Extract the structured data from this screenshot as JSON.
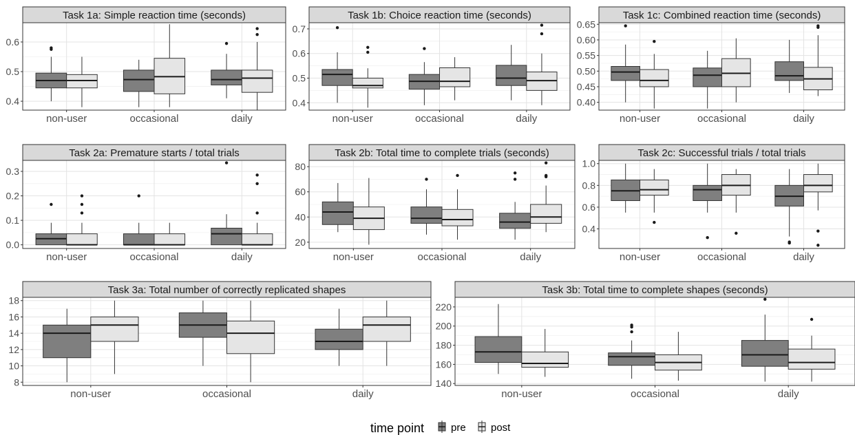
{
  "legend": {
    "title": "time point",
    "entries": [
      {
        "label": "pre",
        "color": "#7f7f7f"
      },
      {
        "label": "post",
        "color": "#e5e5e5"
      }
    ]
  },
  "chart_data": [
    {
      "type": "box",
      "title": "Task 1a: Simple reaction time (seconds)",
      "categories": [
        "non-user",
        "occasional",
        "daily"
      ],
      "ylim": [
        0.37,
        0.665
      ],
      "yticks": [
        0.4,
        0.5,
        0.6
      ],
      "series": [
        {
          "name": "pre",
          "boxes": [
            {
              "min": 0.4,
              "q1": 0.445,
              "median": 0.47,
              "q3": 0.495,
              "max": 0.55,
              "outliers": [
                0.575,
                0.58
              ]
            },
            {
              "min": 0.38,
              "q1": 0.433,
              "median": 0.473,
              "q3": 0.505,
              "max": 0.54,
              "outliers": []
            },
            {
              "min": 0.41,
              "q1": 0.455,
              "median": 0.473,
              "q3": 0.505,
              "max": 0.56,
              "outliers": [
                0.595
              ]
            }
          ]
        },
        {
          "name": "post",
          "boxes": [
            {
              "min": 0.38,
              "q1": 0.445,
              "median": 0.47,
              "q3": 0.49,
              "max": 0.55,
              "outliers": []
            },
            {
              "min": 0.38,
              "q1": 0.425,
              "median": 0.483,
              "q3": 0.545,
              "max": 0.66,
              "outliers": []
            },
            {
              "min": 0.37,
              "q1": 0.43,
              "median": 0.478,
              "q3": 0.505,
              "max": 0.6,
              "outliers": [
                0.625,
                0.645
              ]
            }
          ]
        }
      ]
    },
    {
      "type": "box",
      "title": "Task 1b: Choice reaction time (seconds)",
      "categories": [
        "non-user",
        "occasional",
        "daily"
      ],
      "ylim": [
        0.37,
        0.725
      ],
      "yticks": [
        0.4,
        0.5,
        0.6,
        0.7
      ],
      "series": [
        {
          "name": "pre",
          "boxes": [
            {
              "min": 0.4,
              "q1": 0.47,
              "median": 0.515,
              "q3": 0.535,
              "max": 0.605,
              "outliers": [
                0.705
              ]
            },
            {
              "min": 0.39,
              "q1": 0.455,
              "median": 0.487,
              "q3": 0.515,
              "max": 0.565,
              "outliers": [
                0.62
              ]
            },
            {
              "min": 0.41,
              "q1": 0.47,
              "median": 0.5,
              "q3": 0.552,
              "max": 0.635,
              "outliers": []
            }
          ]
        },
        {
          "name": "post",
          "boxes": [
            {
              "min": 0.38,
              "q1": 0.46,
              "median": 0.47,
              "q3": 0.5,
              "max": 0.54,
              "outliers": [
                0.605,
                0.625
              ]
            },
            {
              "min": 0.41,
              "q1": 0.465,
              "median": 0.487,
              "q3": 0.542,
              "max": 0.585,
              "outliers": []
            },
            {
              "min": 0.39,
              "q1": 0.45,
              "median": 0.49,
              "q3": 0.525,
              "max": 0.6,
              "outliers": [
                0.68,
                0.715
              ]
            }
          ]
        }
      ]
    },
    {
      "type": "box",
      "title": "Task 1c: Combined reaction time (seconds)",
      "categories": [
        "non-user",
        "occasional",
        "daily"
      ],
      "ylim": [
        0.375,
        0.655
      ],
      "yticks": [
        0.4,
        0.45,
        0.5,
        0.55,
        0.6,
        0.65
      ],
      "yticklabels": [
        "0.40",
        "0.45",
        "0.50",
        "0.55",
        "0.60",
        "0.65"
      ],
      "series": [
        {
          "name": "pre",
          "boxes": [
            {
              "min": 0.4,
              "q1": 0.47,
              "median": 0.497,
              "q3": 0.515,
              "max": 0.585,
              "outliers": [
                0.645
              ]
            },
            {
              "min": 0.38,
              "q1": 0.45,
              "median": 0.487,
              "q3": 0.51,
              "max": 0.565,
              "outliers": []
            },
            {
              "min": 0.43,
              "q1": 0.47,
              "median": 0.485,
              "q3": 0.53,
              "max": 0.6,
              "outliers": []
            }
          ]
        },
        {
          "name": "post",
          "boxes": [
            {
              "min": 0.38,
              "q1": 0.45,
              "median": 0.47,
              "q3": 0.505,
              "max": 0.555,
              "outliers": [
                0.595
              ]
            },
            {
              "min": 0.4,
              "q1": 0.45,
              "median": 0.493,
              "q3": 0.54,
              "max": 0.605,
              "outliers": []
            },
            {
              "min": 0.42,
              "q1": 0.44,
              "median": 0.475,
              "q3": 0.512,
              "max": 0.615,
              "outliers": [
                0.64,
                0.645
              ]
            }
          ]
        }
      ]
    },
    {
      "type": "box",
      "title": "Task 2a: Premature starts / total trials",
      "categories": [
        "non-user",
        "occasional",
        "daily"
      ],
      "ylim": [
        -0.015,
        0.345
      ],
      "yticks": [
        0.0,
        0.1,
        0.2,
        0.3
      ],
      "yticklabels": [
        "0.0",
        "0.1",
        "0.2",
        "0.3"
      ],
      "series": [
        {
          "name": "pre",
          "boxes": [
            {
              "min": 0.0,
              "q1": 0.0,
              "median": 0.025,
              "q3": 0.045,
              "max": 0.09,
              "outliers": [
                0.165
              ]
            },
            {
              "min": 0.0,
              "q1": 0.0,
              "median": 0.0,
              "q3": 0.045,
              "max": 0.09,
              "outliers": [
                0.2
              ]
            },
            {
              "min": 0.0,
              "q1": 0.0,
              "median": 0.045,
              "q3": 0.068,
              "max": 0.125,
              "outliers": [
                0.335
              ]
            }
          ]
        },
        {
          "name": "post",
          "boxes": [
            {
              "min": 0.0,
              "q1": 0.0,
              "median": 0.0,
              "q3": 0.045,
              "max": 0.09,
              "outliers": [
                0.13,
                0.165,
                0.2
              ]
            },
            {
              "min": 0.0,
              "q1": 0.0,
              "median": 0.0,
              "q3": 0.045,
              "max": 0.09,
              "outliers": []
            },
            {
              "min": 0.0,
              "q1": 0.0,
              "median": 0.0,
              "q3": 0.045,
              "max": 0.09,
              "outliers": [
                0.13,
                0.25,
                0.285
              ]
            }
          ]
        }
      ]
    },
    {
      "type": "box",
      "title": "Task 2b: Total time to complete trials (seconds)",
      "categories": [
        "non-user",
        "occasional",
        "daily"
      ],
      "ylim": [
        15,
        85
      ],
      "yticks": [
        20,
        40,
        60,
        80
      ],
      "series": [
        {
          "name": "pre",
          "boxes": [
            {
              "min": 28,
              "q1": 34,
              "median": 44,
              "q3": 52,
              "max": 67,
              "outliers": []
            },
            {
              "min": 26,
              "q1": 35,
              "median": 39,
              "q3": 48,
              "max": 62,
              "outliers": [
                70
              ]
            },
            {
              "min": 22,
              "q1": 31,
              "median": 36,
              "q3": 43,
              "max": 52,
              "outliers": [
                70,
                75
              ]
            }
          ]
        },
        {
          "name": "post",
          "boxes": [
            {
              "min": 18,
              "q1": 30,
              "median": 39,
              "q3": 48,
              "max": 71,
              "outliers": []
            },
            {
              "min": 22,
              "q1": 33,
              "median": 38,
              "q3": 46,
              "max": 62,
              "outliers": [
                73
              ]
            },
            {
              "min": 28,
              "q1": 35,
              "median": 40,
              "q3": 50,
              "max": 65,
              "outliers": [
                72,
                73,
                83
              ]
            }
          ]
        }
      ]
    },
    {
      "type": "box",
      "title": "Task 2c: Successful trials / total trials",
      "categories": [
        "non-user",
        "occasional",
        "daily"
      ],
      "ylim": [
        0.22,
        1.03
      ],
      "yticks": [
        0.4,
        0.6,
        0.8,
        1.0
      ],
      "yticklabels": [
        "0.4",
        "0.6",
        "0.8",
        "1.0"
      ],
      "series": [
        {
          "name": "pre",
          "boxes": [
            {
              "min": 0.55,
              "q1": 0.66,
              "median": 0.75,
              "q3": 0.85,
              "max": 1.0,
              "outliers": []
            },
            {
              "min": 0.55,
              "q1": 0.66,
              "median": 0.76,
              "q3": 0.8,
              "max": 1.0,
              "outliers": [
                0.32
              ]
            },
            {
              "min": 0.33,
              "q1": 0.61,
              "median": 0.7,
              "q3": 0.8,
              "max": 0.95,
              "outliers": [
                0.27,
                0.28
              ]
            }
          ]
        },
        {
          "name": "post",
          "boxes": [
            {
              "min": 0.55,
              "q1": 0.71,
              "median": 0.76,
              "q3": 0.85,
              "max": 0.95,
              "outliers": [
                0.46
              ]
            },
            {
              "min": 0.55,
              "q1": 0.71,
              "median": 0.8,
              "q3": 0.9,
              "max": 0.95,
              "outliers": [
                0.36
              ]
            },
            {
              "min": 0.57,
              "q1": 0.74,
              "median": 0.8,
              "q3": 0.9,
              "max": 1.0,
              "outliers": [
                0.25,
                0.38
              ]
            }
          ]
        }
      ]
    },
    {
      "type": "box",
      "title": "Task 3a: Total number of correctly replicated shapes",
      "categories": [
        "non-user",
        "occasional",
        "daily"
      ],
      "ylim": [
        7.6,
        18.4
      ],
      "yticks": [
        8,
        10,
        12,
        14,
        16,
        18
      ],
      "series": [
        {
          "name": "pre",
          "boxes": [
            {
              "min": 8,
              "q1": 11,
              "median": 14,
              "q3": 15,
              "max": 17,
              "outliers": []
            },
            {
              "min": 10,
              "q1": 13.5,
              "median": 15,
              "q3": 16.5,
              "max": 18,
              "outliers": []
            },
            {
              "min": 10,
              "q1": 12,
              "median": 13,
              "q3": 14.5,
              "max": 17,
              "outliers": []
            }
          ]
        },
        {
          "name": "post",
          "boxes": [
            {
              "min": 9,
              "q1": 13,
              "median": 15,
              "q3": 16,
              "max": 18,
              "outliers": []
            },
            {
              "min": 8,
              "q1": 11.5,
              "median": 14,
              "q3": 15.5,
              "max": 18,
              "outliers": []
            },
            {
              "min": 10,
              "q1": 13,
              "median": 15,
              "q3": 16,
              "max": 18,
              "outliers": []
            }
          ]
        }
      ]
    },
    {
      "type": "box",
      "title": "Task 3b: Total time to complete shapes (seconds)",
      "categories": [
        "non-user",
        "occasional",
        "daily"
      ],
      "ylim": [
        138,
        230
      ],
      "yticks": [
        140,
        160,
        180,
        200,
        220
      ],
      "series": [
        {
          "name": "pre",
          "boxes": [
            {
              "min": 150,
              "q1": 162,
              "median": 173,
              "q3": 189,
              "max": 223,
              "outliers": []
            },
            {
              "min": 145,
              "q1": 159,
              "median": 168,
              "q3": 172,
              "max": 185,
              "outliers": [
                194,
                199,
                201
              ]
            },
            {
              "min": 142,
              "q1": 158,
              "median": 170,
              "q3": 185,
              "max": 212,
              "outliers": [
                228
              ]
            }
          ]
        },
        {
          "name": "post",
          "boxes": [
            {
              "min": 147,
              "q1": 157,
              "median": 161,
              "q3": 173,
              "max": 197,
              "outliers": []
            },
            {
              "min": 143,
              "q1": 154,
              "median": 162,
              "q3": 170,
              "max": 194,
              "outliers": []
            },
            {
              "min": 142,
              "q1": 155,
              "median": 162,
              "q3": 176,
              "max": 190,
              "outliers": [
                207
              ]
            }
          ]
        }
      ]
    }
  ]
}
